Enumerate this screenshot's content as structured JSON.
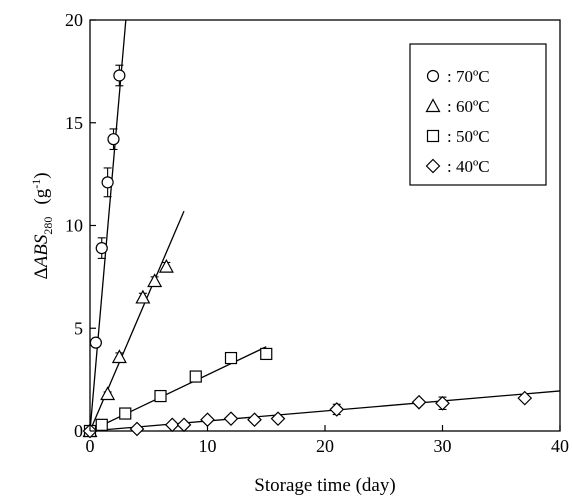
{
  "chart_data": {
    "type": "scatter",
    "xlabel": "Storage time (day)",
    "ylabel": {
      "prefix": "Δ",
      "italic": "ABS",
      "subscript": "280",
      "units_open": "(g",
      "units_sup": "-1",
      "units_close": ")"
    },
    "xlim": [
      0,
      40
    ],
    "ylim": [
      0,
      20
    ],
    "xticks": [
      0,
      10,
      20,
      30,
      40
    ],
    "yticks": [
      0,
      5,
      10,
      15,
      20
    ],
    "grid": false,
    "legend_position": "top-right",
    "series": [
      {
        "name": ": 70ºC",
        "marker": "circle",
        "points": [
          [
            0,
            0
          ],
          [
            0.5,
            4.3
          ],
          [
            1,
            8.9
          ],
          [
            1.5,
            12.1
          ],
          [
            2,
            14.2
          ],
          [
            2.5,
            17.3
          ]
        ],
        "errors": [
          0,
          0.2,
          0.5,
          0.7,
          0.5,
          0.5
        ],
        "fit": [
          [
            0,
            0
          ],
          [
            3.05,
            20
          ]
        ]
      },
      {
        "name": ": 60ºC",
        "marker": "triangle",
        "points": [
          [
            0,
            0
          ],
          [
            1.5,
            1.8
          ],
          [
            2.5,
            3.6
          ],
          [
            4.5,
            6.5
          ],
          [
            5.5,
            7.3
          ],
          [
            6.5,
            8.0
          ]
        ],
        "errors": [
          0,
          0.1,
          0.2,
          0.2,
          0.2,
          0.2
        ],
        "fit": [
          [
            0,
            0
          ],
          [
            8,
            10.7
          ]
        ]
      },
      {
        "name": ": 50ºC",
        "marker": "square",
        "points": [
          [
            0,
            0
          ],
          [
            1,
            0.3
          ],
          [
            3,
            0.85
          ],
          [
            6,
            1.7
          ],
          [
            9,
            2.65
          ],
          [
            12,
            3.55
          ],
          [
            15,
            3.75
          ]
        ],
        "errors": [
          0,
          0.05,
          0.05,
          0.1,
          0.1,
          0.2,
          0.15
        ],
        "fit": [
          [
            0,
            0
          ],
          [
            15,
            4.1
          ]
        ]
      },
      {
        "name": ": 40ºC",
        "marker": "diamond",
        "points": [
          [
            0,
            0
          ],
          [
            4,
            0.1
          ],
          [
            7,
            0.3
          ],
          [
            8,
            0.3
          ],
          [
            10,
            0.55
          ],
          [
            12,
            0.6
          ],
          [
            14,
            0.55
          ],
          [
            16,
            0.6
          ],
          [
            21,
            1.05
          ],
          [
            28,
            1.4
          ],
          [
            30,
            1.35
          ],
          [
            37,
            1.6
          ]
        ],
        "errors": [
          0,
          0,
          0,
          0,
          0.05,
          0.05,
          0,
          0,
          0.25,
          0.1,
          0.3,
          0.1
        ],
        "fit": [
          [
            0,
            0
          ],
          [
            40,
            1.95
          ]
        ]
      }
    ]
  }
}
